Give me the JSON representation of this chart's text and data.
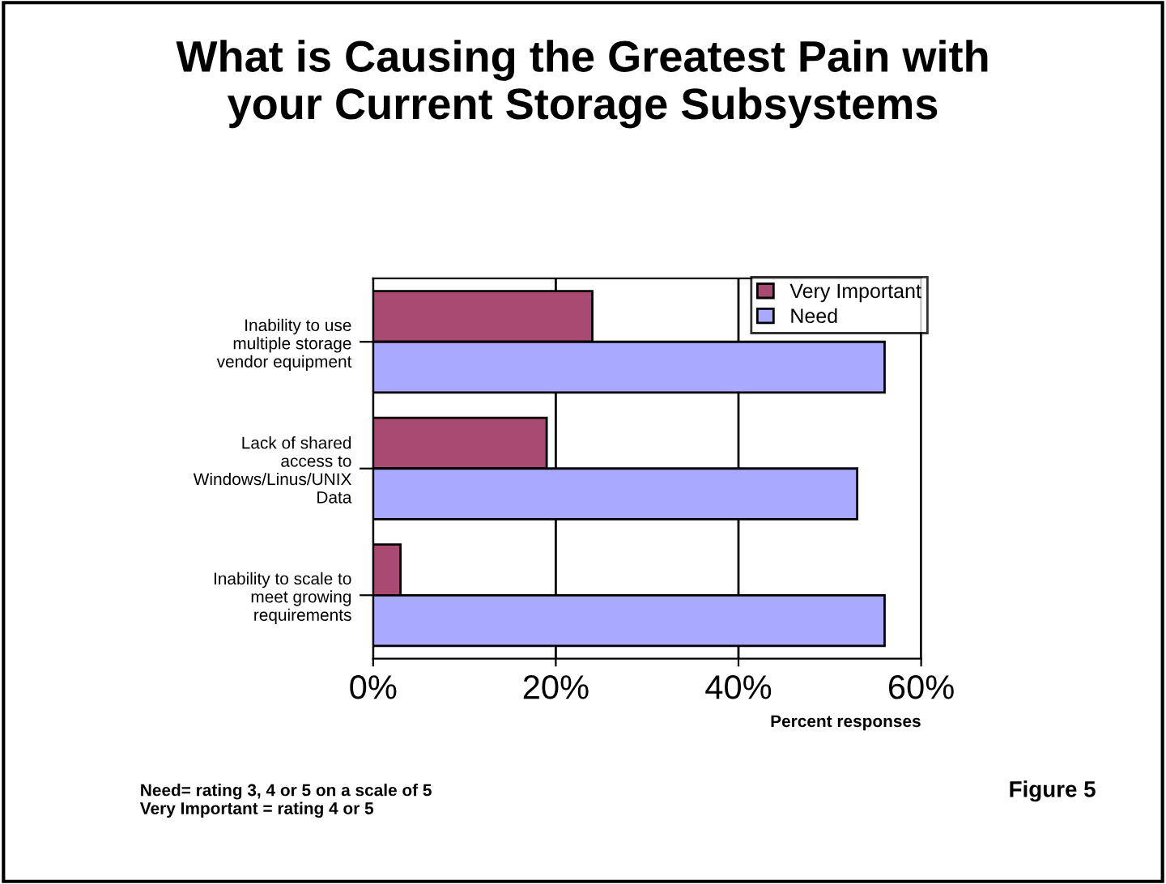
{
  "chart_data": {
    "type": "bar",
    "orientation": "horizontal",
    "title": "What is Causing the Greatest Pain with\nyour Current Storage Subsystems",
    "categories": [
      "Inability to use\nmultiple storage\nvendor equipment",
      "Lack of shared\naccess to\nWindows/Linus/UNIX\nData",
      "Inability to scale to\nmeet growing\nrequirements"
    ],
    "series": [
      {
        "name": "Very Important",
        "color": "#a94a73",
        "values": [
          24,
          19,
          3
        ]
      },
      {
        "name": "Need",
        "color": "#a9a9ff",
        "values": [
          56,
          53,
          56
        ]
      }
    ],
    "xlim": [
      0,
      60
    ],
    "xticks": [
      {
        "value": 0,
        "label": "0%"
      },
      {
        "value": 20,
        "label": "20%"
      },
      {
        "value": 40,
        "label": "40%"
      },
      {
        "value": 60,
        "label": "60%"
      }
    ],
    "xlabel": "Percent responses",
    "grid": "x",
    "legend": "top right",
    "annotations": [
      "Need= rating 3, 4 or 5 on a scale of 5\nVery Important = rating 4 or 5",
      "Figure 5"
    ]
  }
}
